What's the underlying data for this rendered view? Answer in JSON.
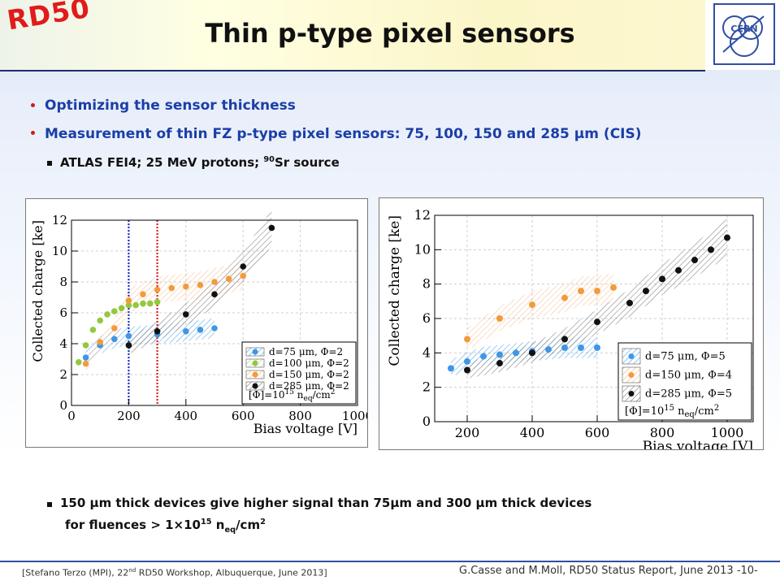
{
  "slide": {
    "logo_text": "RD50",
    "title": "Thin p-type pixel sensors",
    "cern_label": "CERN",
    "bullets": [
      "Optimizing the sensor thickness",
      "Measurement of thin FZ p-type pixel sensors: 75, 100, 150 and 285 μm (CIS)"
    ],
    "sub_bullet": {
      "pre": "ATLAS FEI4; 25 MeV protons; ",
      "sup": "90",
      "post": "Sr source"
    },
    "conclusion": {
      "line1": "150 μm thick devices give higher signal than 75μm and 300 μm  thick devices",
      "line2_pre": "for fluences > 1×10",
      "line2_sup": "15",
      "line2_mid": " n",
      "line2_sub": "eq",
      "line2_post": "/cm",
      "line2_sup2": "2"
    },
    "footer_left": {
      "pre": "[Stefano Terzo (MPI), 22",
      "sup": "nd",
      "post": " RD50  Workshop, Albuquerque, June 2013]"
    },
    "footer_right": "G.Casse and M.Moll, RD50 Status Report, June 2013 -10-"
  },
  "colors": {
    "blue": "#3f96e6",
    "green": "#93c83e",
    "orange": "#f39a3c",
    "black": "#111111",
    "red_line": "#d42020",
    "blue_line": "#1f33c8"
  },
  "chart_data": [
    {
      "type": "scatter",
      "xlabel": "Bias voltage [V]",
      "ylabel": "Collected charge [ke]",
      "xlim": [
        0,
        1000
      ],
      "ylim": [
        0,
        12
      ],
      "xticks": [
        0,
        200,
        400,
        600,
        800,
        1000
      ],
      "yticks": [
        0,
        2,
        4,
        6,
        8,
        10,
        12
      ],
      "grid": true,
      "vlines": [
        {
          "x": 200,
          "color": "blue"
        },
        {
          "x": 300,
          "color": "red"
        }
      ],
      "legend_position": "bottom-right",
      "legend_note": {
        "pre": "[Φ]=10",
        "sup": "15",
        "mid": " n",
        "sub": "eq",
        "post": "/cm",
        "sup2": "2"
      },
      "series": [
        {
          "name": "d=75   μm, Φ=2",
          "color": "blue",
          "x": [
            50,
            100,
            150,
            200,
            300,
            400,
            450,
            500
          ],
          "y": [
            3.1,
            3.9,
            4.3,
            4.5,
            4.6,
            4.8,
            4.9,
            5.0
          ]
        },
        {
          "name": "d=100  μm, Φ=2",
          "color": "green",
          "x": [
            25,
            50,
            75,
            100,
            125,
            150,
            175,
            200,
            225,
            250,
            275,
            300
          ],
          "y": [
            2.8,
            3.9,
            4.9,
            5.5,
            5.9,
            6.1,
            6.3,
            6.5,
            6.5,
            6.6,
            6.6,
            6.7
          ]
        },
        {
          "name": "d=150  μm, Φ=2",
          "color": "orange",
          "x": [
            50,
            100,
            150,
            200,
            250,
            300,
            350,
            400,
            450,
            500,
            550,
            600
          ],
          "y": [
            2.7,
            4.1,
            5.0,
            6.8,
            7.2,
            7.5,
            7.6,
            7.7,
            7.8,
            8.0,
            8.2,
            8.4
          ]
        },
        {
          "name": "d=285  μm, Φ=2",
          "color": "black",
          "x": [
            200,
            300,
            400,
            500,
            600,
            700
          ],
          "y": [
            3.9,
            4.8,
            5.9,
            7.2,
            9.0,
            11.5
          ]
        }
      ]
    },
    {
      "type": "scatter",
      "xlabel": "Bias voltage [V]",
      "ylabel": "Collected charge [ke]",
      "xlim": [
        100,
        1080
      ],
      "ylim": [
        0,
        12
      ],
      "xticks": [
        200,
        400,
        600,
        800,
        1000
      ],
      "yticks": [
        0,
        2,
        4,
        6,
        8,
        10,
        12
      ],
      "grid": true,
      "legend_position": "bottom-right",
      "legend_note": {
        "pre": "[Φ]=10",
        "sup": "15",
        "mid": " n",
        "sub": "eq",
        "post": "/cm",
        "sup2": "2"
      },
      "series": [
        {
          "name": "d=75   μm, Φ=5",
          "color": "blue",
          "x": [
            150,
            200,
            250,
            300,
            350,
            400,
            450,
            500,
            550,
            600
          ],
          "y": [
            3.1,
            3.5,
            3.8,
            3.9,
            4.0,
            4.1,
            4.2,
            4.3,
            4.3,
            4.3
          ]
        },
        {
          "name": "d=150  μm, Φ=4",
          "color": "orange",
          "x": [
            200,
            300,
            400,
            500,
            550,
            600,
            650
          ],
          "y": [
            4.8,
            6.0,
            6.8,
            7.2,
            7.6,
            7.6,
            7.8
          ]
        },
        {
          "name": "d=285  μm, Φ=5",
          "color": "black",
          "x": [
            200,
            300,
            400,
            500,
            600,
            700,
            750,
            800,
            850,
            900,
            950,
            1000
          ],
          "y": [
            3.0,
            3.4,
            4.0,
            4.8,
            5.8,
            6.9,
            7.6,
            8.3,
            8.8,
            9.4,
            10.0,
            10.7
          ]
        }
      ]
    }
  ]
}
